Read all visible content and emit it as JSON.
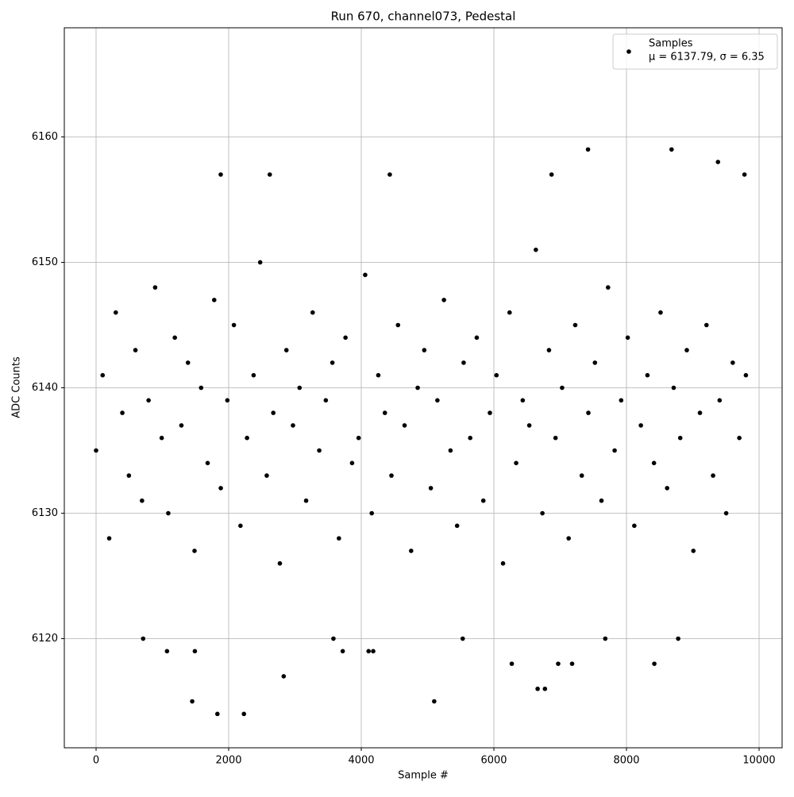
{
  "chart_data": {
    "type": "scatter",
    "title": "Run 670, channel073, Pedestal",
    "x_label": "Sample #",
    "y_label": "ADC Counts",
    "series": [
      {
        "name": "Samples",
        "color": "#000000",
        "x": [
          0,
          99,
          198,
          297,
          396,
          495,
          594,
          693,
          792,
          891,
          990,
          1089,
          1188,
          1287,
          1386,
          1485,
          1584,
          1683,
          1782,
          1881,
          1980,
          2079,
          2178,
          2277,
          2376,
          2475,
          2574,
          2673,
          2772,
          2871,
          2970,
          3069,
          3168,
          3267,
          3366,
          3465,
          3564,
          3663,
          3762,
          3861,
          3960,
          4059,
          4158,
          4257,
          4356,
          4455,
          4554,
          4653,
          4752,
          4851,
          4950,
          5049,
          5148,
          5247,
          5346,
          5445,
          5544,
          5643,
          5742,
          5841,
          5940,
          6039,
          6138,
          6237,
          6336,
          6435,
          6534,
          6633,
          6732,
          6831,
          6930,
          7029,
          7128,
          7227,
          7326,
          7425,
          7524,
          7623,
          7722,
          7821,
          7920,
          8019,
          8118,
          8217,
          8316,
          8415,
          8514,
          8613,
          8712,
          8811,
          8910,
          9009,
          9108,
          9207,
          9306,
          9405,
          9504,
          9603,
          9702,
          9801,
          1450,
          1830,
          2230,
          5100,
          2830,
          7420,
          8680,
          9380,
          1880,
          2620,
          4430,
          6870,
          9780,
          710,
          3580,
          5530,
          7680,
          8780,
          6660,
          6770,
          6270,
          6970,
          7180,
          8420,
          1070,
          1490,
          3720,
          4110,
          4180
        ],
        "values": [
          6135,
          6141,
          6128,
          6146,
          6138,
          6133,
          6143,
          6131,
          6139,
          6148,
          6136,
          6130,
          6144,
          6137,
          6142,
          6127,
          6140,
          6134,
          6147,
          6132,
          6139,
          6145,
          6129,
          6136,
          6141,
          6150,
          6133,
          6138,
          6126,
          6143,
          6137,
          6140,
          6131,
          6146,
          6135,
          6139,
          6142,
          6128,
          6144,
          6134,
          6136,
          6149,
          6130,
          6141,
          6138,
          6133,
          6145,
          6137,
          6127,
          6140,
          6143,
          6132,
          6139,
          6147,
          6135,
          6129,
          6142,
          6136,
          6144,
          6131,
          6138,
          6141,
          6126,
          6146,
          6134,
          6139,
          6137,
          6151,
          6130,
          6143,
          6136,
          6140,
          6128,
          6145,
          6133,
          6138,
          6142,
          6131,
          6148,
          6135,
          6139,
          6144,
          6129,
          6137,
          6141,
          6134,
          6146,
          6132,
          6140,
          6136,
          6143,
          6127,
          6138,
          6145,
          6133,
          6139,
          6130,
          6142,
          6136,
          6141,
          6115,
          6114,
          6114,
          6115,
          6117,
          6159,
          6159,
          6158,
          6157,
          6157,
          6157,
          6157,
          6157,
          6120,
          6120,
          6120,
          6120,
          6120,
          6116,
          6116,
          6118,
          6118,
          6118,
          6118,
          6119,
          6119,
          6119,
          6119,
          6119
        ]
      }
    ],
    "legend_note": "μ = 6137.79, σ = 6.35",
    "legend_position": "upper right",
    "xlim": [
      -479,
      10347
    ],
    "xticks": [
      0,
      2000,
      4000,
      6000,
      8000,
      10000
    ],
    "ylim": [
      6111.3,
      6168.7
    ],
    "yticks": [
      6120,
      6130,
      6140,
      6150,
      6160
    ],
    "grid": true
  }
}
